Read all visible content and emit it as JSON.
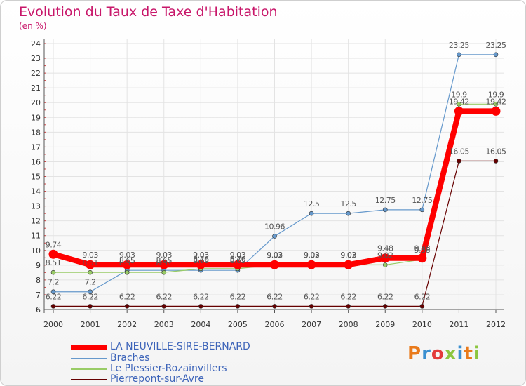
{
  "chart_data": {
    "type": "line",
    "title": "Evolution du Taux de Taxe d'Habitation",
    "unit_label": "(en %)",
    "ylim": [
      6,
      24
    ],
    "y_ticks": [
      6,
      7,
      8,
      9,
      10,
      11,
      12,
      13,
      14,
      15,
      16,
      17,
      18,
      19,
      20,
      21,
      22,
      23,
      24
    ],
    "categories": [
      "2000",
      "2001",
      "2002",
      "2003",
      "2004",
      "2005",
      "2006",
      "2007",
      "2008",
      "2009",
      "2010",
      "2011",
      "2012"
    ],
    "grid": true,
    "legend_position": "bottom-left",
    "series": [
      {
        "name": "LA NEUVILLE-SIRE-BERNARD",
        "color": "#ff0000",
        "values": [
          9.74,
          9.03,
          9.03,
          9.03,
          9.03,
          9.03,
          9.03,
          9.03,
          9.03,
          9.48,
          9.48,
          19.42,
          19.42
        ],
        "labels": [
          "9.74",
          "9.03",
          "9.03",
          "9.03",
          "9.03",
          "9.03",
          "9.03",
          "9.03",
          "9.03",
          "9.48",
          "9.48",
          "19.42",
          "19.42"
        ]
      },
      {
        "name": "Braches",
        "color": "#6699cc",
        "values": [
          7.2,
          7.2,
          8.65,
          8.65,
          8.65,
          8.65,
          10.96,
          12.5,
          12.5,
          12.75,
          12.75,
          23.25,
          23.25
        ],
        "labels": [
          "7.2",
          "7.2",
          "8.65",
          "8.65",
          "8.65",
          "8.65",
          "10.96",
          "12.5",
          "12.5",
          "12.75",
          "12.75",
          "23.25",
          "23.25"
        ]
      },
      {
        "name": "Le Plessier-Rozainvillers",
        "color": "#99cc66",
        "values": [
          8.51,
          8.51,
          8.51,
          8.51,
          8.76,
          8.76,
          9.02,
          9.02,
          9.02,
          9.02,
          9.38,
          19.9,
          19.9
        ],
        "labels": [
          "8.51",
          "8.51",
          "8.51",
          "8.51",
          "8.76",
          "8.76",
          "9.02",
          "9.02",
          "9.02",
          "9.02",
          "9.38",
          "19.9",
          "19.9"
        ]
      },
      {
        "name": "Pierrepont-sur-Avre",
        "color": "#660000",
        "values": [
          6.22,
          6.22,
          6.22,
          6.22,
          6.22,
          6.22,
          6.22,
          6.22,
          6.22,
          6.22,
          6.22,
          16.05,
          16.05
        ],
        "labels": [
          "6.22",
          "6.22",
          "6.22",
          "6.22",
          "6.22",
          "6.22",
          "6.22",
          "6.22",
          "6.22",
          "6.22",
          "6.22",
          "16.05",
          "16.05"
        ]
      }
    ]
  },
  "logo": {
    "text": "Proxiti",
    "letter_colors": [
      "#e97a1b",
      "#3a8fd0",
      "#e33b3b",
      "#8cc63f",
      "#3a8fd0",
      "#e97a1b",
      "#8cc63f"
    ]
  }
}
